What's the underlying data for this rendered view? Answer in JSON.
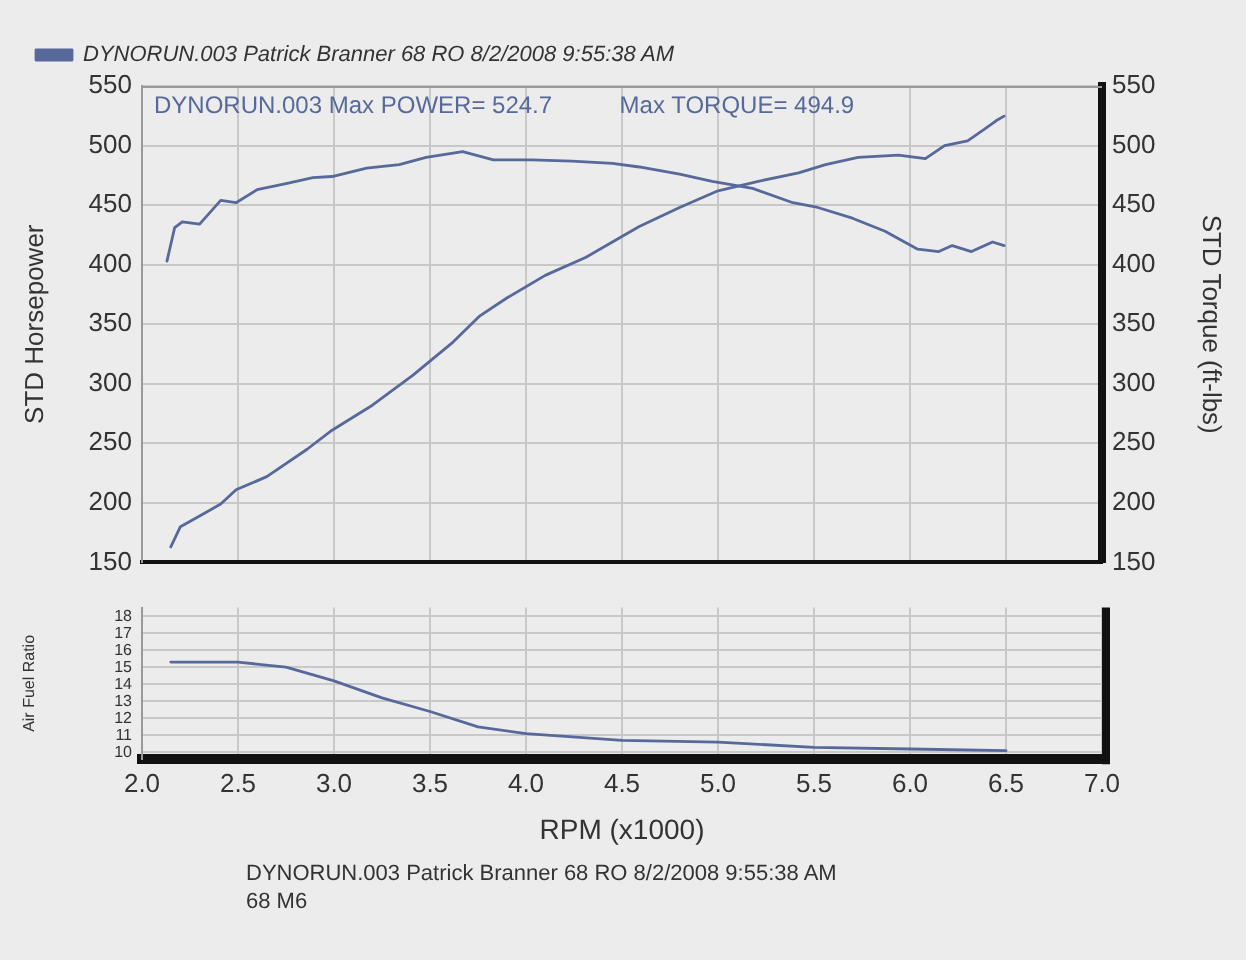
{
  "chart_data": [
    {
      "type": "line",
      "ylabel": "STD Horsepower",
      "y2label": "STD Torque (ft-lbs)",
      "annotations": [
        "DYNORUN.003 Max POWER= 524.7",
        "Max TORQUE= 494.9"
      ],
      "xlim": [
        2,
        7
      ],
      "xticks": [
        2,
        2.5,
        3,
        3.5,
        4,
        4.5,
        5,
        5.5,
        6,
        6.5,
        7
      ],
      "ylim": [
        150,
        550
      ],
      "yticks": [
        150,
        200,
        250,
        300,
        350,
        400,
        450,
        500,
        550
      ],
      "y2lim": [
        150,
        550
      ],
      "y2ticks": [
        150,
        200,
        250,
        300,
        350,
        400,
        450,
        500,
        550
      ],
      "tick_labels": "y",
      "grid": true,
      "legend": "top left",
      "series": [
        {
          "name": "DYNORUN.003 Patrick Branner 68 RO 8/2/2008 9:55:38 AM",
          "color": "#56699a",
          "x": [
            2.15,
            2.2,
            2.3,
            2.41,
            2.49,
            2.65,
            2.86,
            2.99,
            3.2,
            3.41,
            3.62,
            3.76,
            3.9,
            4.1,
            4.31,
            4.45,
            4.59,
            4.8,
            5.0,
            5.21,
            5.42,
            5.56,
            5.73,
            5.94,
            6.08,
            6.18,
            6.3,
            6.39,
            6.45,
            6.49
          ],
          "values": [
            163,
            180,
            189,
            199,
            211,
            222,
            245,
            261,
            282,
            307,
            335,
            357,
            372,
            391,
            406,
            419,
            432,
            448,
            462,
            470,
            477,
            484,
            490,
            492,
            489,
            500,
            504,
            514,
            521,
            524.7
          ]
        },
        {
          "color": "#56699a",
          "x": [
            2.13,
            2.17,
            2.21,
            2.3,
            2.41,
            2.49,
            2.6,
            2.75,
            2.89,
            2.99,
            3.17,
            3.34,
            3.48,
            3.67,
            3.83,
            4.03,
            4.24,
            4.45,
            4.59,
            4.8,
            4.97,
            5.18,
            5.39,
            5.52,
            5.7,
            5.87,
            6.04,
            6.15,
            6.22,
            6.32,
            6.43,
            6.49
          ],
          "values": [
            403,
            431,
            436,
            434,
            454,
            452,
            463,
            468,
            473,
            474,
            481,
            484,
            490,
            494.9,
            488,
            488,
            487,
            485,
            482,
            476,
            470,
            464,
            452,
            448,
            439,
            428,
            413,
            411,
            416,
            411,
            419,
            416
          ]
        }
      ]
    },
    {
      "type": "line",
      "xlabel": "RPM (x1000)",
      "ylabel": "Air Fuel Ratio",
      "annotations": [
        "DYNORUN.003 Patrick Branner 68 RO 8/2/2008 9:55:38 AM",
        "68 M6"
      ],
      "xlim": [
        2,
        7
      ],
      "xticks": [
        {
          "value": 2,
          "label": "2.0"
        },
        {
          "value": 2.5,
          "label": "2.5"
        },
        {
          "value": 3,
          "label": "3.0"
        },
        {
          "value": 3.5,
          "label": "3.5"
        },
        {
          "value": 4,
          "label": "4.0"
        },
        {
          "value": 4.5,
          "label": "4.5"
        },
        {
          "value": 5,
          "label": "5.0"
        },
        {
          "value": 5.5,
          "label": "5.5"
        },
        {
          "value": 6,
          "label": "6.0"
        },
        {
          "value": 6.5,
          "label": "6.5"
        },
        {
          "value": 7,
          "label": "7.0"
        }
      ],
      "ylim": [
        9.6,
        18.5
      ],
      "yticks": [
        10,
        11,
        12,
        13,
        14,
        15,
        16,
        17,
        18
      ],
      "grid": true,
      "series": [
        {
          "color": "#56699a",
          "x": [
            2.15,
            2.5,
            2.75,
            3.0,
            3.25,
            3.5,
            3.75,
            4.0,
            4.5,
            5.0,
            5.5,
            6.0,
            6.5
          ],
          "values": [
            15.3,
            15.3,
            15.0,
            14.2,
            13.2,
            12.4,
            11.5,
            11.1,
            10.7,
            10.6,
            10.3,
            10.2,
            10.1
          ]
        }
      ]
    }
  ]
}
